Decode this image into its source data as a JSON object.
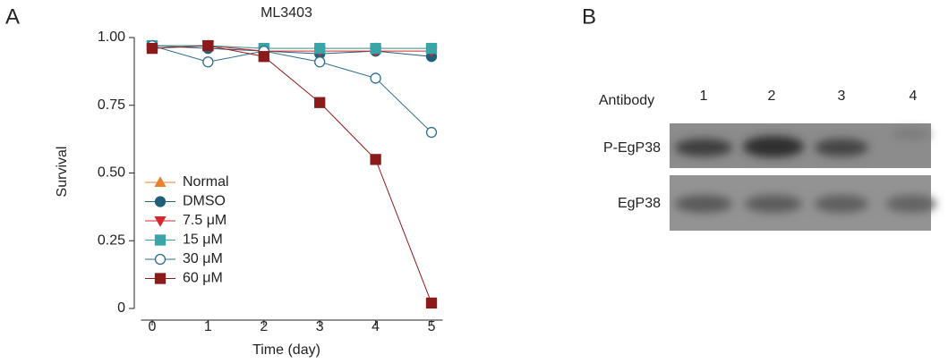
{
  "panel_labels": [
    "A",
    "B"
  ],
  "chart_data": {
    "type": "line",
    "title": "ML3403",
    "x_label": "Time (day)",
    "y_label": "Survival",
    "x": [
      0,
      1,
      2,
      3,
      4,
      5
    ],
    "xlim": [
      -0.2,
      5.2
    ],
    "xticks": [
      0,
      1,
      2,
      3,
      4,
      5
    ],
    "ylim": [
      0,
      1
    ],
    "yticks": [
      0,
      0.25,
      {
        "value": 0.5,
        "label": "0.50"
      },
      0.75,
      {
        "value": 1,
        "label": "1.00"
      }
    ],
    "legend": "center left",
    "series": [
      {
        "name": "Normal",
        "color": "#e8822a",
        "marker": "triangle",
        "values": [
          0.97,
          0.97,
          0.96,
          0.96,
          0.96,
          0.96
        ]
      },
      {
        "name": "DMSO",
        "color": "#1f5f7a",
        "marker": "circle",
        "values": [
          0.97,
          0.96,
          0.95,
          0.94,
          0.95,
          0.93
        ]
      },
      {
        "name": "7.5 μM",
        "color": "#d6262e",
        "marker": "triangle-down",
        "values": [
          0.97,
          0.97,
          0.95,
          0.95,
          0.95,
          0.95
        ]
      },
      {
        "name": "15 μM",
        "color": "#3aa5a8",
        "marker": "square",
        "values": [
          0.97,
          0.97,
          0.96,
          0.96,
          0.96,
          0.96
        ]
      },
      {
        "name": "30 μM",
        "color": "#2c6e8f",
        "marker": "open-circle",
        "values": [
          0.97,
          0.91,
          0.95,
          0.91,
          0.85,
          0.65
        ]
      },
      {
        "name": "60 μM",
        "color": "#8b1a1a",
        "marker": "square",
        "values": [
          0.96,
          0.97,
          0.93,
          0.76,
          0.55,
          0.02
        ]
      }
    ]
  },
  "blot": {
    "header": "Antibody",
    "lanes": [
      "1",
      "2",
      "3",
      "4"
    ],
    "rows": [
      "P-EgP38",
      "EgP38"
    ]
  }
}
